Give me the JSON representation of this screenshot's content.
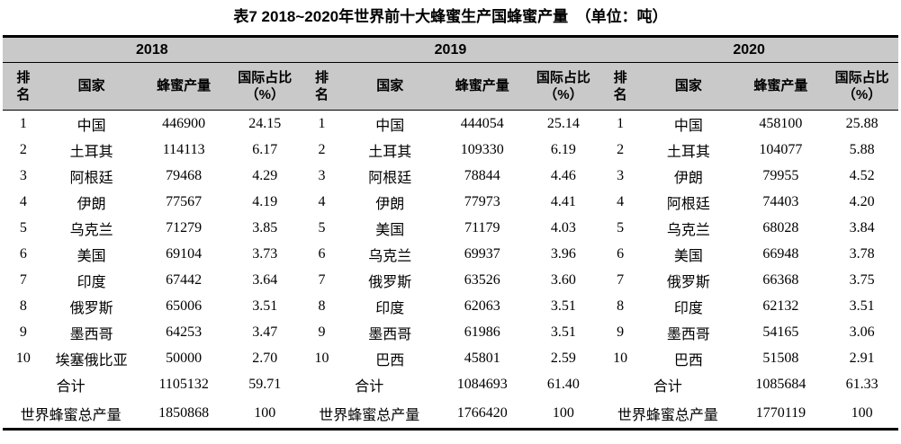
{
  "chart_data": {
    "type": "table",
    "title": "表7 2018~2020年世界前十大蜂蜜生产国蜂蜜产量　（单位：吨）",
    "unit": "吨",
    "columns": [
      "排\n名",
      "国家",
      "蜂蜜产量",
      "国际占比\n（%）"
    ],
    "sections": [
      {
        "year": "2018",
        "rows": [
          {
            "rank": "1",
            "country": "中国",
            "production": "446900",
            "share": "24.15"
          },
          {
            "rank": "2",
            "country": "土耳其",
            "production": "114113",
            "share": "6.17"
          },
          {
            "rank": "3",
            "country": "阿根廷",
            "production": "79468",
            "share": "4.29"
          },
          {
            "rank": "4",
            "country": "伊朗",
            "production": "77567",
            "share": "4.19"
          },
          {
            "rank": "5",
            "country": "乌克兰",
            "production": "71279",
            "share": "3.85"
          },
          {
            "rank": "6",
            "country": "美国",
            "production": "69104",
            "share": "3.73"
          },
          {
            "rank": "7",
            "country": "印度",
            "production": "67442",
            "share": "3.64"
          },
          {
            "rank": "8",
            "country": "俄罗斯",
            "production": "65006",
            "share": "3.51"
          },
          {
            "rank": "9",
            "country": "墨西哥",
            "production": "64253",
            "share": "3.47"
          },
          {
            "rank": "10",
            "country": "埃塞俄比亚",
            "production": "50000",
            "share": "2.70"
          }
        ],
        "total": {
          "label": "合计",
          "production": "1105132",
          "share": "59.71"
        },
        "world": {
          "label": "世界蜂蜜总产量",
          "production": "1850868",
          "share": "100"
        }
      },
      {
        "year": "2019",
        "rows": [
          {
            "rank": "1",
            "country": "中国",
            "production": "444054",
            "share": "25.14"
          },
          {
            "rank": "2",
            "country": "土耳其",
            "production": "109330",
            "share": "6.19"
          },
          {
            "rank": "3",
            "country": "阿根廷",
            "production": "78844",
            "share": "4.46"
          },
          {
            "rank": "4",
            "country": "伊朗",
            "production": "77973",
            "share": "4.41"
          },
          {
            "rank": "5",
            "country": "美国",
            "production": "71179",
            "share": "4.03"
          },
          {
            "rank": "6",
            "country": "乌克兰",
            "production": "69937",
            "share": "3.96"
          },
          {
            "rank": "7",
            "country": "俄罗斯",
            "production": "63526",
            "share": "3.60"
          },
          {
            "rank": "8",
            "country": "印度",
            "production": "62063",
            "share": "3.51"
          },
          {
            "rank": "9",
            "country": "墨西哥",
            "production": "61986",
            "share": "3.51"
          },
          {
            "rank": "10",
            "country": "巴西",
            "production": "45801",
            "share": "2.59"
          }
        ],
        "total": {
          "label": "合计",
          "production": "1084693",
          "share": "61.40"
        },
        "world": {
          "label": "世界蜂蜜总产量",
          "production": "1766420",
          "share": "100"
        }
      },
      {
        "year": "2020",
        "rows": [
          {
            "rank": "1",
            "country": "中国",
            "production": "458100",
            "share": "25.88"
          },
          {
            "rank": "2",
            "country": "土耳其",
            "production": "104077",
            "share": "5.88"
          },
          {
            "rank": "3",
            "country": "伊朗",
            "production": "79955",
            "share": "4.52"
          },
          {
            "rank": "4",
            "country": "阿根廷",
            "production": "74403",
            "share": "4.20"
          },
          {
            "rank": "5",
            "country": "乌克兰",
            "production": "68028",
            "share": "3.84"
          },
          {
            "rank": "6",
            "country": "美国",
            "production": "66948",
            "share": "3.78"
          },
          {
            "rank": "7",
            "country": "俄罗斯",
            "production": "66368",
            "share": "3.75"
          },
          {
            "rank": "8",
            "country": "印度",
            "production": "62132",
            "share": "3.51"
          },
          {
            "rank": "9",
            "country": "墨西哥",
            "production": "54165",
            "share": "3.06"
          },
          {
            "rank": "10",
            "country": "巴西",
            "production": "51508",
            "share": "2.91"
          }
        ],
        "total": {
          "label": "合计",
          "production": "1085684",
          "share": "61.33"
        },
        "world": {
          "label": "世界蜂蜜总产量",
          "production": "1770119",
          "share": "100"
        }
      }
    ],
    "layout": {
      "header_background": "#c9c9c9",
      "text_color": "#000000",
      "grid": "horizontal-rules-only"
    }
  }
}
